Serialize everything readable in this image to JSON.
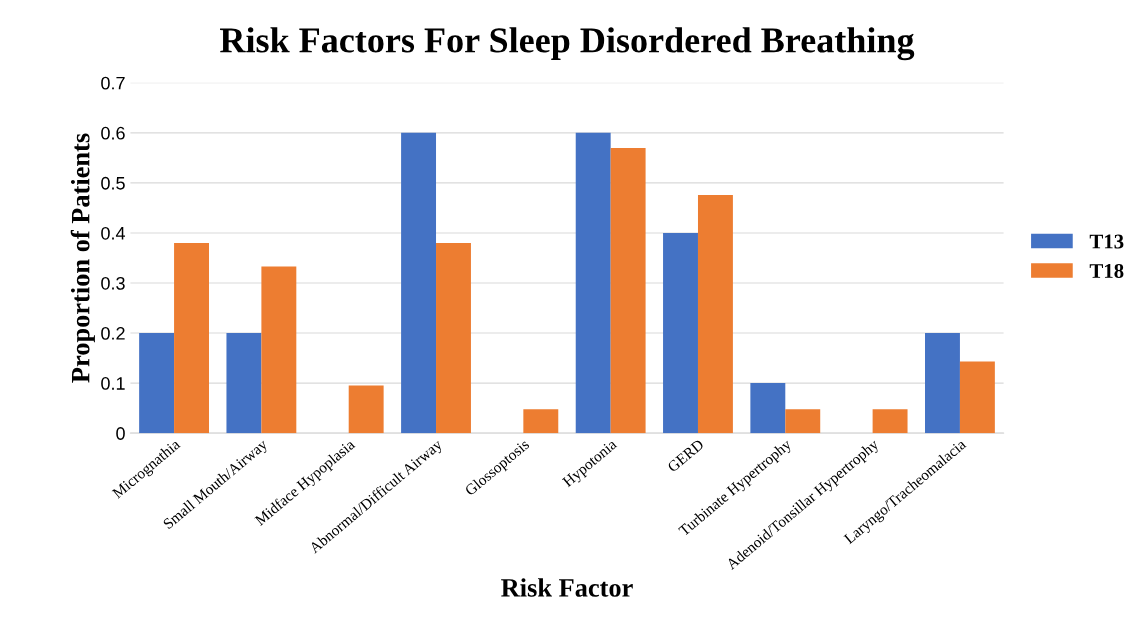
{
  "chart_data": {
    "type": "bar",
    "title": "Risk Factors For Sleep Disordered Breathing",
    "xlabel": "Risk Factor",
    "ylabel": "Proportion of Patients",
    "categories": [
      "Micrognathia",
      "Small Mouth/Airway",
      "Midface Hypoplasia",
      "Abnormal/Difficult Airway",
      "Glossoptosis",
      "Hypotonia",
      "GERD",
      "Turbinate Hypertrophy",
      "Adenoid/Tonsillar Hypertrophy",
      "Laryngo/Tracheomalacia"
    ],
    "series": [
      {
        "name": "T13",
        "color": "#4472c4",
        "values": [
          0.2,
          0.2,
          0,
          0.6,
          0,
          0.6,
          0.4,
          0.1,
          0,
          0.2
        ]
      },
      {
        "name": "T18",
        "color": "#ed7d31",
        "values": [
          0.38,
          0.333,
          0.095,
          0.38,
          0.048,
          0.57,
          0.476,
          0.048,
          0.048,
          0.143
        ]
      }
    ],
    "ylim": [
      0,
      0.7
    ],
    "yticks": [
      {
        "value": 0,
        "label": "0"
      },
      0.1,
      0.2,
      0.3,
      0.4,
      0.5,
      0.6,
      0.7
    ],
    "grid": "y",
    "legend": "right"
  }
}
